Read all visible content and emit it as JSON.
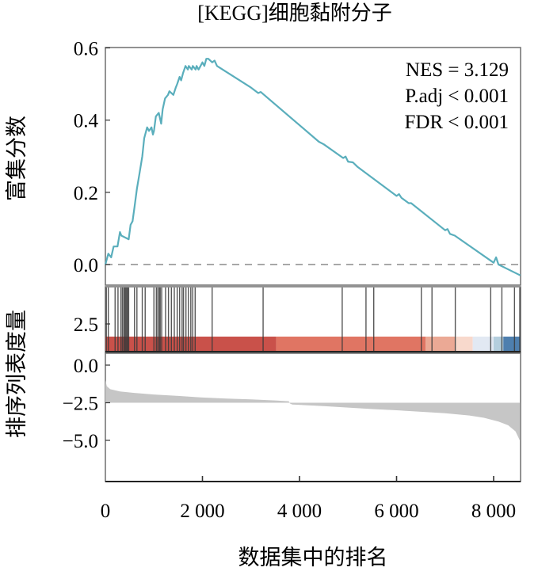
{
  "chart_data": {
    "type": "line",
    "title": "[KEGG]细胞黏附分子",
    "xlabel": "数据集中的排名",
    "x_range": [
      0,
      8550
    ],
    "x_ticks": [
      0,
      2000,
      4000,
      6000,
      8000
    ],
    "x_tick_labels": [
      "0",
      "2 000",
      "4 000",
      "6 000",
      "8 000"
    ],
    "panels": {
      "enrichment": {
        "ylabel": "富集分数",
        "ylim": [
          -0.03,
          0.6
        ],
        "y_ticks": [
          0.0,
          0.2,
          0.4,
          0.6
        ],
        "y_tick_labels": [
          "0.0",
          "0.2",
          "0.4",
          "0.6"
        ],
        "line_color": "#5aaebc",
        "baseline": 0.0,
        "baseline_style": "dashed",
        "series": {
          "name": "running enrichment score",
          "x": [
            0,
            60,
            120,
            170,
            250,
            300,
            330,
            480,
            520,
            560,
            600,
            650,
            700,
            760,
            800,
            860,
            900,
            950,
            980,
            1000,
            1040,
            1100,
            1150,
            1180,
            1230,
            1290,
            1320,
            1400,
            1450,
            1480,
            1530,
            1560,
            1600,
            1650,
            1700,
            1720,
            1780,
            1800,
            1860,
            1880,
            1920,
            1960,
            2000,
            2040,
            2080,
            2120,
            2200,
            2250,
            2300,
            3000,
            3150,
            3200,
            4400,
            4500,
            4900,
            4950,
            5000,
            5100,
            5200,
            6000,
            6050,
            6100,
            6250,
            6300,
            7000,
            7050,
            7100,
            7200,
            8000,
            8050,
            8100,
            8550
          ],
          "y": [
            0.0,
            0.03,
            0.02,
            0.05,
            0.05,
            0.09,
            0.08,
            0.07,
            0.11,
            0.12,
            0.16,
            0.21,
            0.25,
            0.3,
            0.35,
            0.38,
            0.37,
            0.38,
            0.36,
            0.37,
            0.41,
            0.42,
            0.39,
            0.43,
            0.46,
            0.47,
            0.48,
            0.47,
            0.49,
            0.5,
            0.52,
            0.51,
            0.53,
            0.55,
            0.54,
            0.55,
            0.54,
            0.55,
            0.54,
            0.55,
            0.54,
            0.55,
            0.56,
            0.55,
            0.57,
            0.57,
            0.56,
            0.565,
            0.55,
            0.49,
            0.475,
            0.478,
            0.34,
            0.333,
            0.295,
            0.299,
            0.285,
            0.283,
            0.27,
            0.19,
            0.195,
            0.185,
            0.17,
            0.17,
            0.095,
            0.098,
            0.085,
            0.08,
            0.005,
            0.02,
            0.0,
            -0.03
          ]
        },
        "annotations": [
          "NES = 3.129",
          "P.adj < 0.001",
          "FDR < 0.001"
        ],
        "annotation_placement": "top-right"
      },
      "hits": {
        "y_tick_labels": [
          "2.5"
        ],
        "hit_positions": [
          20,
          60,
          200,
          260,
          320,
          350,
          380,
          400,
          420,
          440,
          460,
          480,
          600,
          650,
          760,
          820,
          1000,
          1050,
          1080,
          1110,
          1130,
          1160,
          1240,
          1300,
          1360,
          1420,
          1480,
          1530,
          1580,
          1610,
          1660,
          1710,
          1760,
          1800,
          1850,
          2200,
          3250,
          4880,
          5370,
          5530,
          6510,
          6730,
          7210,
          7940,
          8170,
          8430,
          8550
        ],
        "color_strip": [
          {
            "from": 0,
            "to": 3520,
            "color": "#c9514a"
          },
          {
            "from": 3520,
            "to": 6600,
            "color": "#e07563"
          },
          {
            "from": 6600,
            "to": 7200,
            "color": "#eba995"
          },
          {
            "from": 7200,
            "to": 7570,
            "color": "#f8d9cc"
          },
          {
            "from": 7570,
            "to": 8000,
            "color": "#e2e9f3"
          },
          {
            "from": 8000,
            "to": 8200,
            "color": "#b4cedd"
          },
          {
            "from": 8200,
            "to": 8550,
            "color": "#4e7fae"
          }
        ]
      },
      "ranked_metric": {
        "ylabel": "排序列表度量",
        "ylim": [
          -7.8,
          0.8
        ],
        "y_ticks": [
          0.0,
          -2.5,
          -5.0
        ],
        "y_tick_labels": [
          "0.0",
          "−2.5",
          "−5.0"
        ],
        "fill_color": "#c6c6c6",
        "baseline": -2.5,
        "x": [
          0,
          30,
          100,
          300,
          600,
          1000,
          1500,
          2000,
          2500,
          3000,
          3500,
          3780,
          3800,
          3850,
          4500,
          5000,
          5500,
          6000,
          6500,
          7000,
          7500,
          7800,
          8100,
          8300,
          8450,
          8550
        ],
        "y": [
          -1.0,
          -1.4,
          -1.6,
          -1.75,
          -1.85,
          -1.95,
          -2.05,
          -2.15,
          -2.22,
          -2.28,
          -2.35,
          -2.4,
          -2.55,
          -2.62,
          -2.72,
          -2.82,
          -2.92,
          -3.0,
          -3.1,
          -3.2,
          -3.35,
          -3.5,
          -3.75,
          -4.0,
          -4.4,
          -5.0
        ]
      }
    }
  }
}
